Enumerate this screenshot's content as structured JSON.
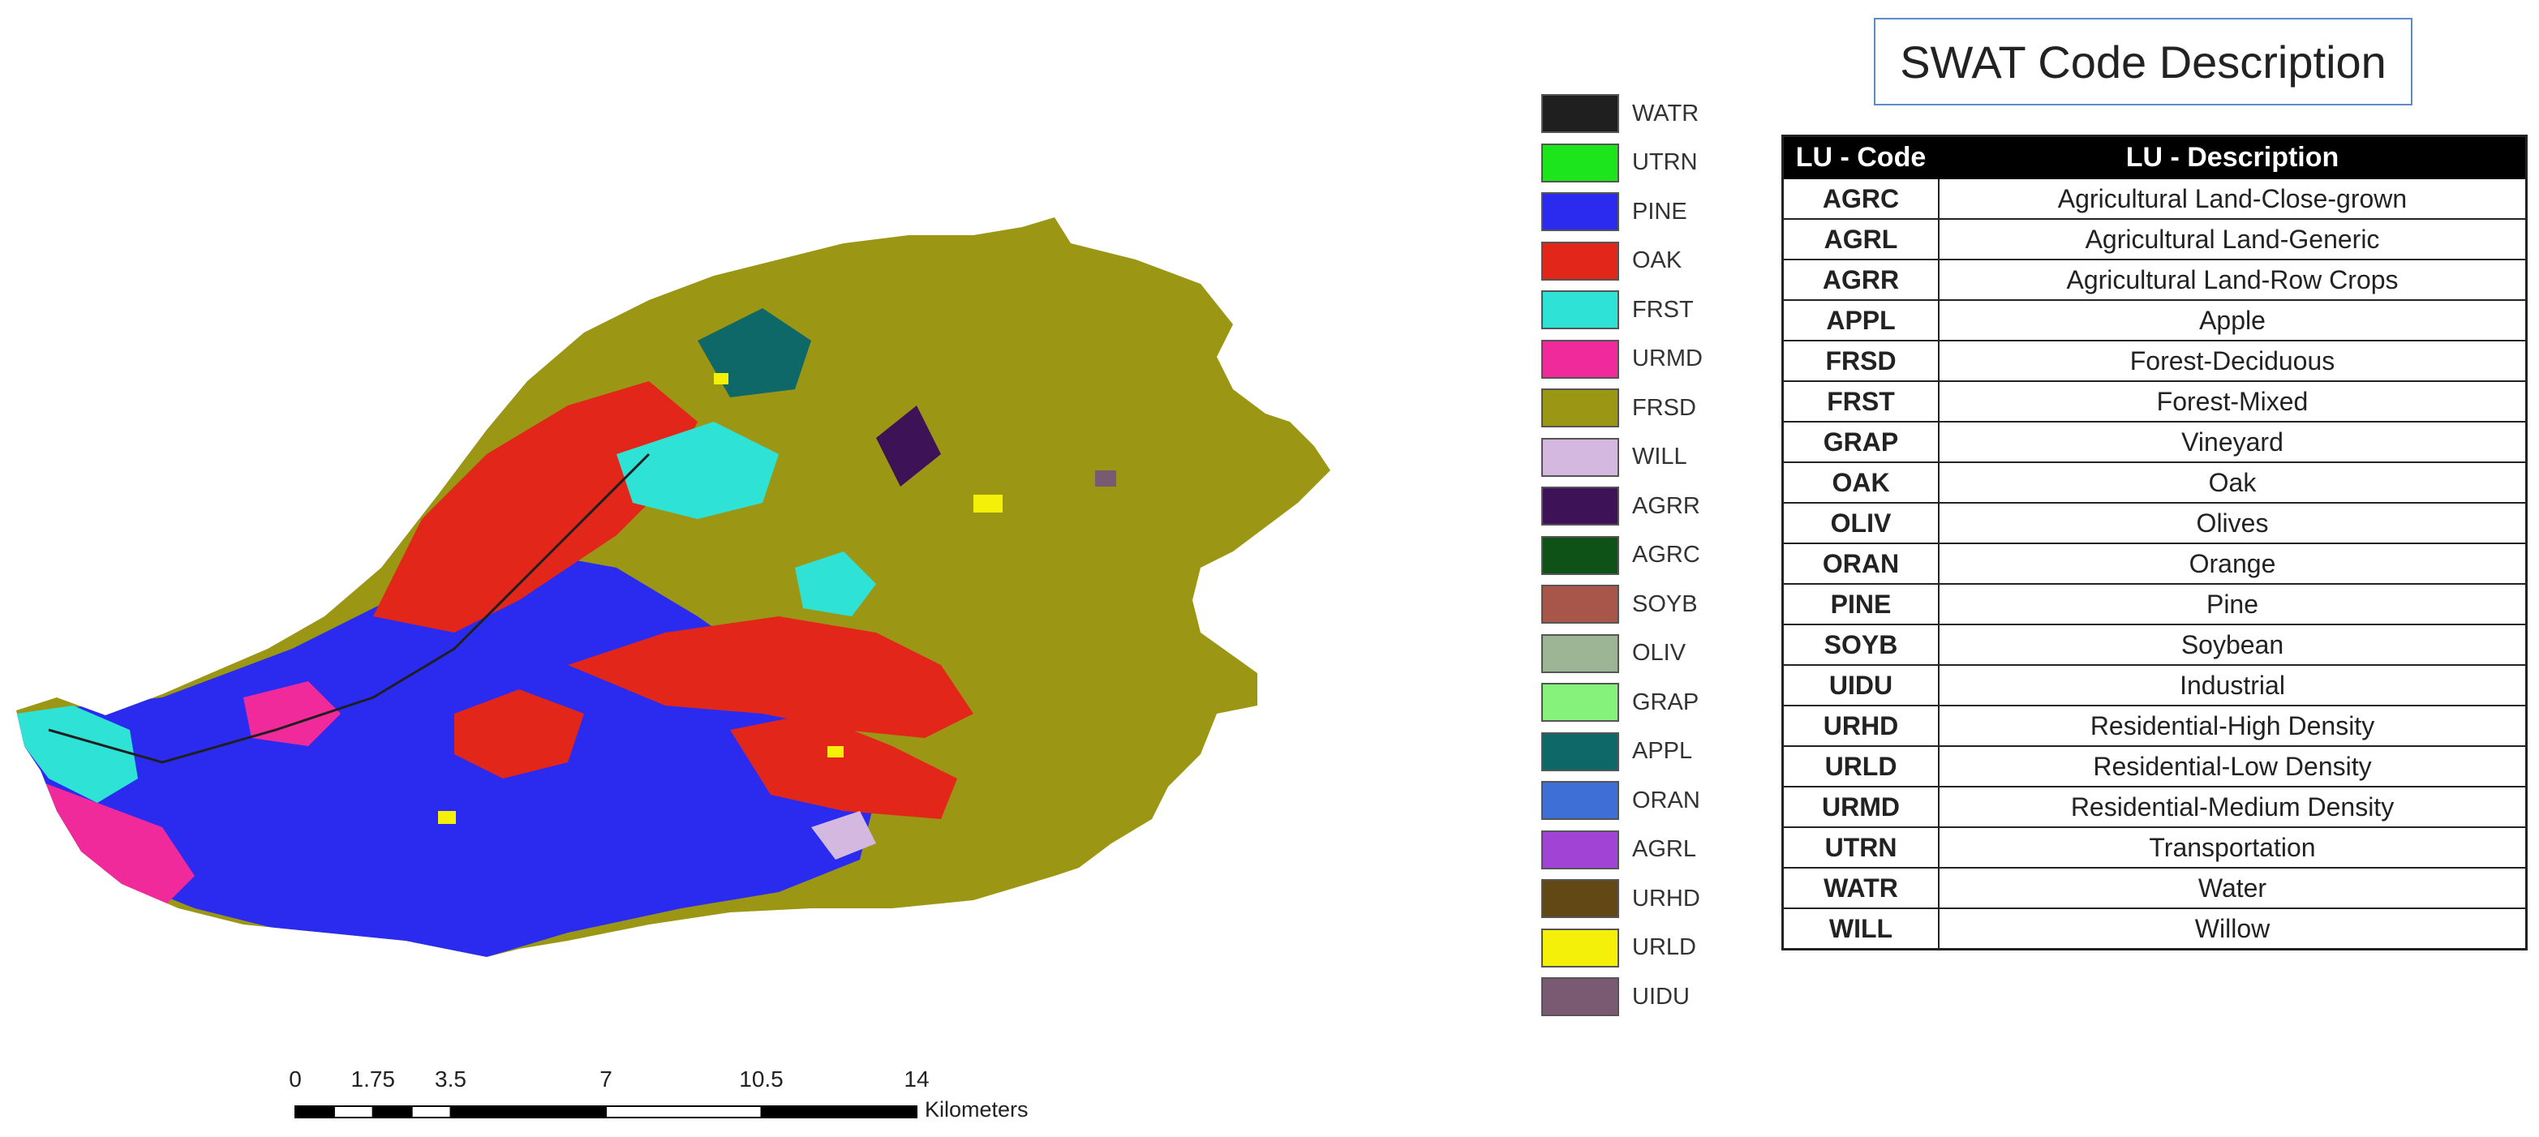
{
  "legend": {
    "items": [
      {
        "code": "WATR",
        "color": "#1f1f1f"
      },
      {
        "code": "UTRN",
        "color": "#1ce51c"
      },
      {
        "code": "PINE",
        "color": "#2b2bf0"
      },
      {
        "code": "OAK",
        "color": "#e3261a"
      },
      {
        "code": "FRST",
        "color": "#2ee3d6"
      },
      {
        "code": "URMD",
        "color": "#f02a9a"
      },
      {
        "code": "FRSD",
        "color": "#9b9614"
      },
      {
        "code": "WILL",
        "color": "#d4b8e0"
      },
      {
        "code": "AGRR",
        "color": "#3d1257"
      },
      {
        "code": "AGRC",
        "color": "#0f5218"
      },
      {
        "code": "SOYB",
        "color": "#a9564a"
      },
      {
        "code": "OLIV",
        "color": "#9db594"
      },
      {
        "code": "GRAP",
        "color": "#86f27c"
      },
      {
        "code": "APPL",
        "color": "#0f6868"
      },
      {
        "code": "ORAN",
        "color": "#3d6fd6"
      },
      {
        "code": "AGRL",
        "color": "#a144d6"
      },
      {
        "code": "URHD",
        "color": "#614814"
      },
      {
        "code": "URLD",
        "color": "#f5f00a"
      },
      {
        "code": "UIDU",
        "color": "#7a5a72"
      }
    ]
  },
  "swat": {
    "title": "SWAT Code Description",
    "headers": {
      "code": "LU - Code",
      "description": "LU - Description"
    },
    "rows": [
      {
        "code": "AGRC",
        "description": "Agricultural Land-Close-grown"
      },
      {
        "code": "AGRL",
        "description": "Agricultural Land-Generic"
      },
      {
        "code": "AGRR",
        "description": "Agricultural Land-Row Crops"
      },
      {
        "code": "APPL",
        "description": "Apple"
      },
      {
        "code": "FRSD",
        "description": "Forest-Deciduous"
      },
      {
        "code": "FRST",
        "description": "Forest-Mixed"
      },
      {
        "code": "GRAP",
        "description": "Vineyard"
      },
      {
        "code": "OAK",
        "description": "Oak"
      },
      {
        "code": "OLIV",
        "description": "Olives"
      },
      {
        "code": "ORAN",
        "description": "Orange"
      },
      {
        "code": "PINE",
        "description": "Pine"
      },
      {
        "code": "SOYB",
        "description": "Soybean"
      },
      {
        "code": "UIDU",
        "description": "Industrial"
      },
      {
        "code": "URHD",
        "description": "Residential-High Density"
      },
      {
        "code": "URLD",
        "description": "Residential-Low Density"
      },
      {
        "code": "URMD",
        "description": "Residential-Medium Density"
      },
      {
        "code": "UTRN",
        "description": "Transportation"
      },
      {
        "code": "WATR",
        "description": "Water"
      },
      {
        "code": "WILL",
        "description": "Willow"
      }
    ]
  },
  "scale": {
    "ticks": [
      "0",
      "1.75",
      "3.5",
      "7",
      "10.5",
      "14"
    ],
    "tick_values": [
      0,
      1.75,
      3.5,
      7,
      10.5,
      14
    ],
    "unit": "Kilometers"
  }
}
